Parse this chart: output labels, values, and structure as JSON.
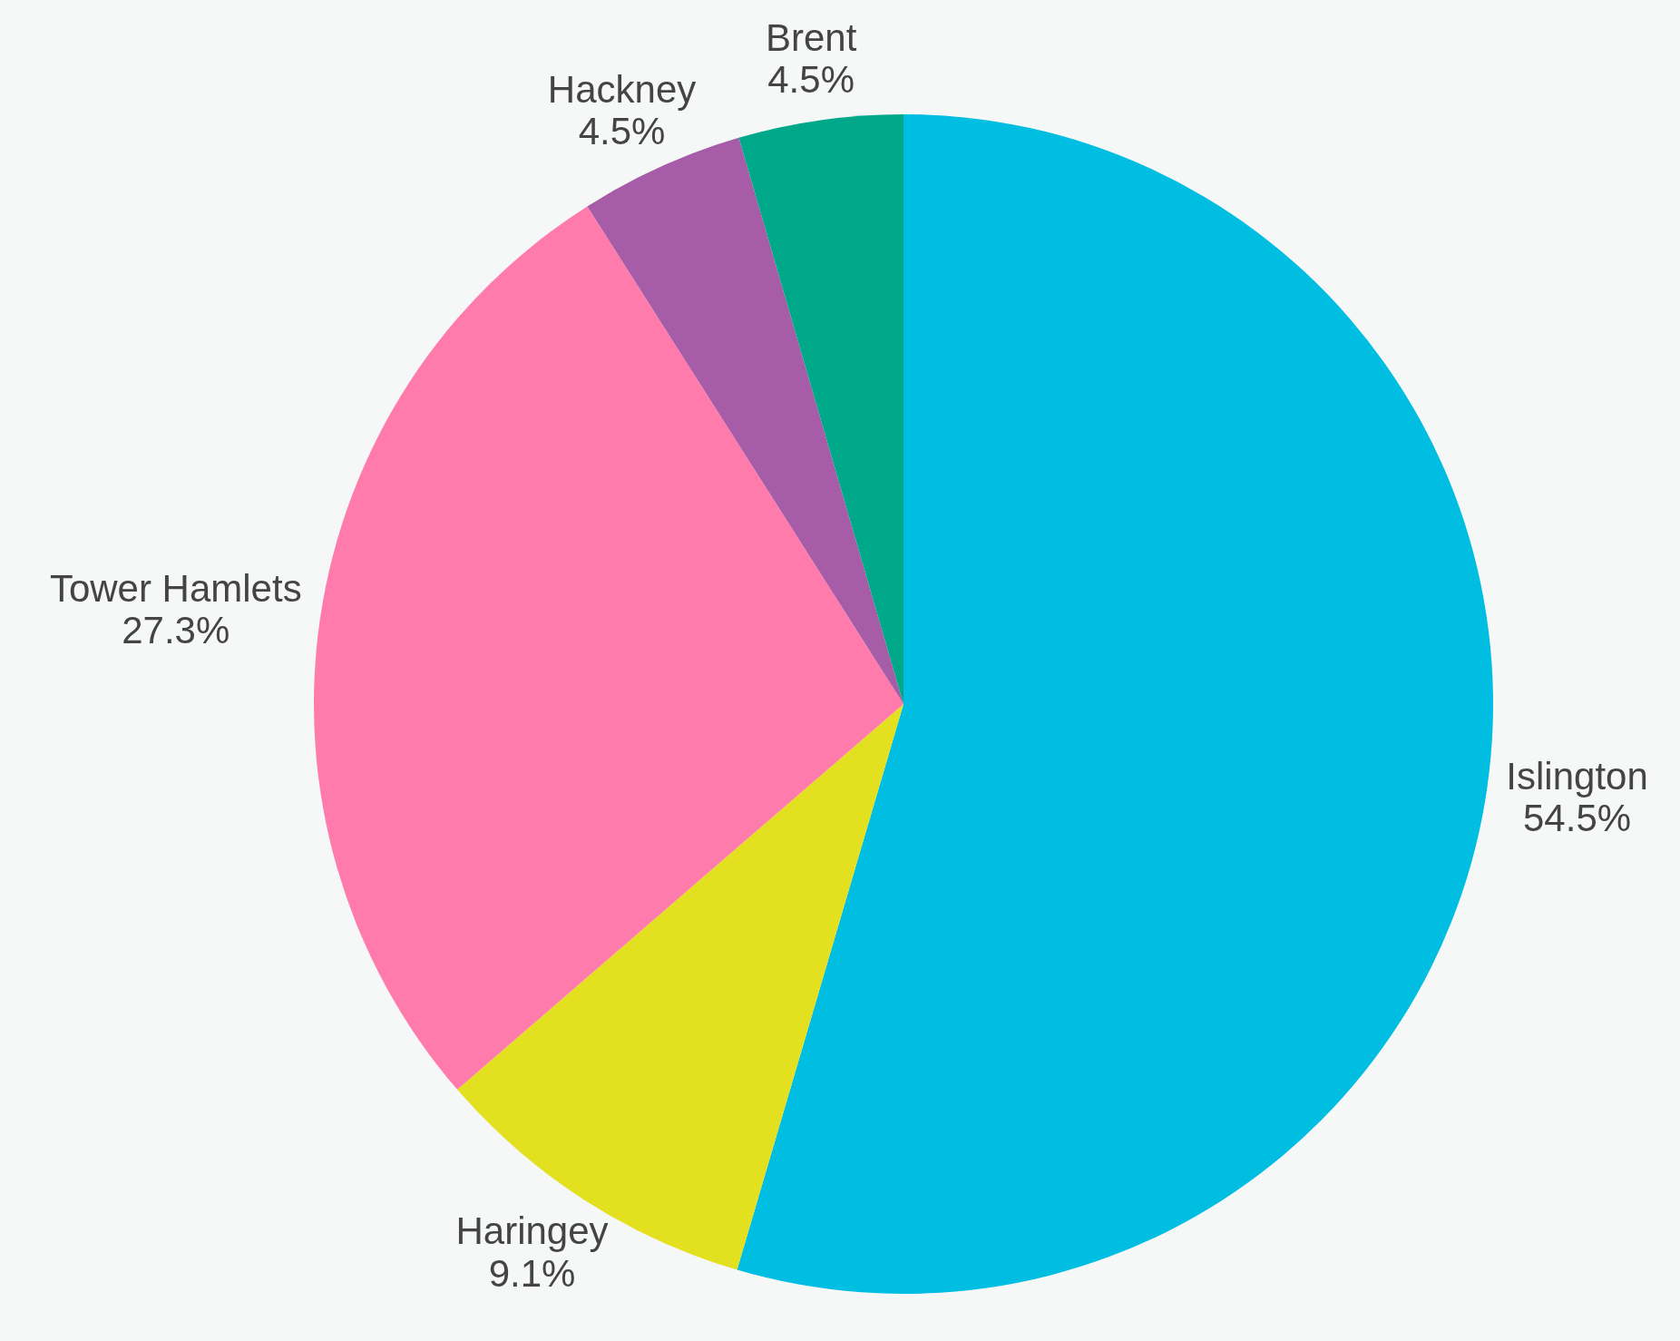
{
  "chart_data": {
    "type": "pie",
    "categories": [
      "Islington",
      "Haringey",
      "Tower Hamlets",
      "Hackney",
      "Brent"
    ],
    "values": [
      54.5,
      9.1,
      27.3,
      4.5,
      4.5
    ],
    "colors": [
      "#00bde2",
      "#e3e020",
      "#ff7bac",
      "#a65ca6",
      "#00a88a"
    ],
    "value_labels": [
      "54.5%",
      "9.1%",
      "27.3%",
      "4.5%",
      "4.5%"
    ]
  }
}
